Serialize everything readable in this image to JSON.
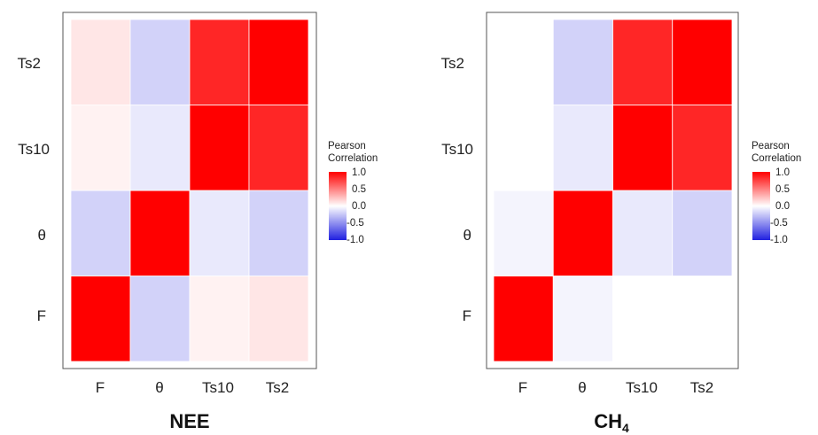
{
  "chart_data": [
    {
      "type": "heatmap",
      "title": "NEE",
      "title_sub": "",
      "variables": [
        "F",
        "θ",
        "Ts10",
        "Ts2"
      ],
      "x_labels": [
        "F",
        "θ",
        "Ts10",
        "Ts2"
      ],
      "y_labels_bottom_to_top": [
        "F",
        "θ",
        "Ts10",
        "Ts2"
      ],
      "values": [
        [
          1.0,
          -0.2,
          0.05,
          0.1
        ],
        [
          -0.2,
          1.0,
          -0.1,
          -0.2
        ],
        [
          0.05,
          -0.1,
          1.0,
          0.85
        ],
        [
          0.1,
          -0.2,
          0.85,
          1.0
        ]
      ],
      "legend": {
        "title_lines": [
          "Pearson",
          "Correlation"
        ],
        "ticks": [
          "1.0",
          "0.5",
          "0.0",
          "-0.5",
          "-1.0"
        ],
        "range": [
          -1,
          1
        ],
        "colors": {
          "low": "#2020e0",
          "mid": "#ffffff",
          "high": "#ff0000"
        }
      }
    },
    {
      "type": "heatmap",
      "title": "CH",
      "title_sub": "4",
      "variables": [
        "F",
        "θ",
        "Ts10",
        "Ts2"
      ],
      "x_labels": [
        "F",
        "θ",
        "Ts10",
        "Ts2"
      ],
      "y_labels_bottom_to_top": [
        "F",
        "θ",
        "Ts10",
        "Ts2"
      ],
      "values": [
        [
          1.0,
          -0.05,
          0.0,
          0.0
        ],
        [
          -0.05,
          1.0,
          -0.1,
          -0.2
        ],
        [
          0.0,
          -0.1,
          1.0,
          0.85
        ],
        [
          0.0,
          -0.2,
          0.85,
          1.0
        ]
      ],
      "legend": {
        "title_lines": [
          "Pearson",
          "Correlation"
        ],
        "ticks": [
          "1.0",
          "0.5",
          "0.0",
          "-0.5",
          "-1.0"
        ],
        "range": [
          -1,
          1
        ],
        "colors": {
          "low": "#2020e0",
          "mid": "#ffffff",
          "high": "#ff0000"
        }
      }
    }
  ]
}
